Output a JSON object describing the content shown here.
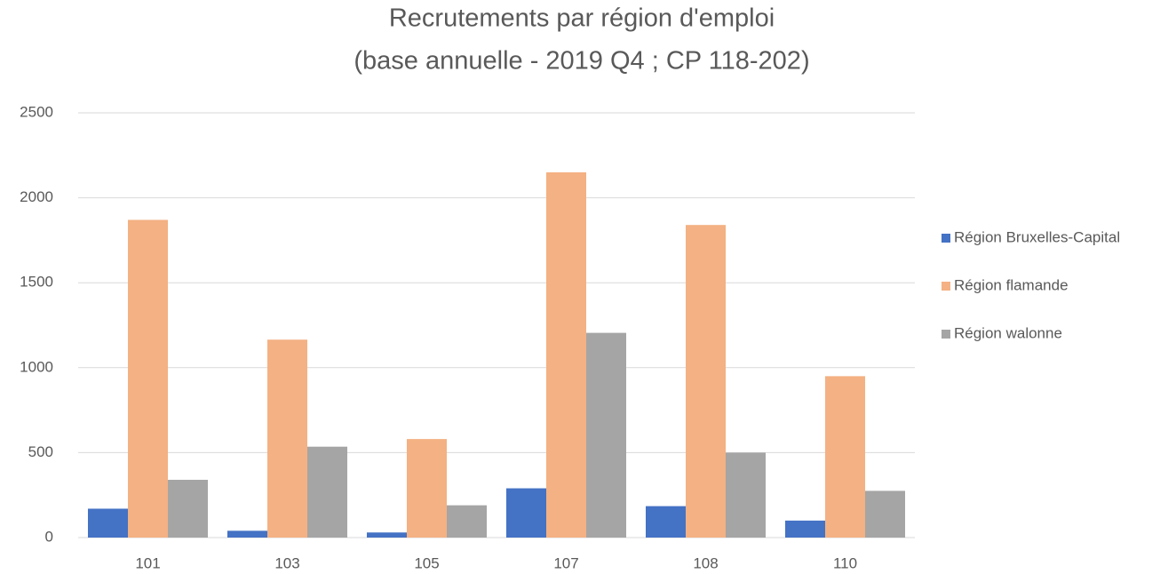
{
  "chart_data": {
    "type": "bar",
    "title": "Recrutements par région d'emploi",
    "subtitle": "(base annuelle - 2019 Q4 ; CP 118-202)",
    "categories": [
      "101",
      "103",
      "105",
      "107",
      "108",
      "110"
    ],
    "series": [
      {
        "name": "Région Bruxelles-Capital",
        "color": "#4472c4",
        "values": [
          170,
          40,
          30,
          290,
          185,
          100
        ]
      },
      {
        "name": "Région flamande",
        "color": "#f4b183",
        "values": [
          1870,
          1165,
          580,
          2150,
          1840,
          950
        ]
      },
      {
        "name": "Région walonne",
        "color": "#a5a5a5",
        "values": [
          340,
          535,
          190,
          1205,
          500,
          275
        ]
      }
    ],
    "ylim": [
      0,
      2500
    ],
    "yticks": [
      0,
      500,
      1000,
      1500,
      2000,
      2500
    ],
    "grid": true,
    "legend": "right"
  }
}
